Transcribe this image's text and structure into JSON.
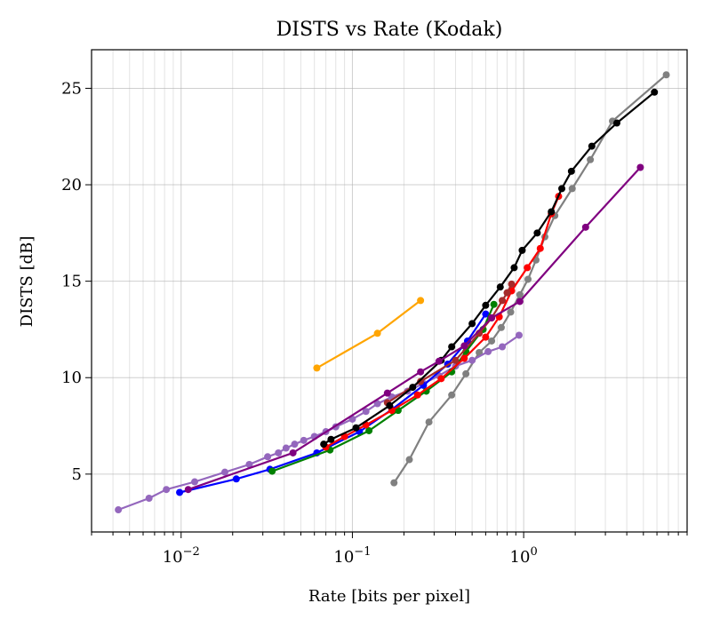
{
  "chart_data": {
    "type": "line",
    "title": "DISTS vs Rate (Kodak)",
    "xlabel": "Rate [bits per pixel]",
    "ylabel": "DISTS [dB]",
    "xscale": "log",
    "xlim": [
      0.003,
      9.0
    ],
    "ylim": [
      2.0,
      27.0
    ],
    "x_ticks": [
      {
        "value": 0.01,
        "base": "10",
        "exp": "−2"
      },
      {
        "value": 0.1,
        "base": "10",
        "exp": "−1"
      },
      {
        "value": 1.0,
        "base": "10",
        "exp": "0"
      }
    ],
    "y_ticks": [
      5,
      10,
      15,
      20,
      25
    ],
    "grid": true,
    "series": [
      {
        "color": "#ffa500",
        "x": [
          0.062,
          0.14,
          0.25
        ],
        "y": [
          10.5,
          12.3,
          14.0
        ]
      },
      {
        "color": "#808080",
        "x": [
          0.175,
          0.215,
          0.28,
          0.38,
          0.46,
          0.55,
          0.65,
          0.74,
          0.84,
          0.95,
          1.06,
          1.18,
          1.33,
          1.52,
          1.92,
          2.45,
          3.3,
          6.8
        ],
        "y": [
          4.55,
          5.75,
          7.7,
          9.1,
          10.2,
          11.3,
          11.9,
          12.6,
          13.4,
          14.3,
          15.1,
          16.1,
          17.3,
          18.4,
          19.8,
          21.3,
          23.3,
          25.7
        ]
      },
      {
        "color": "#9467bd",
        "x": [
          0.0043,
          0.0065,
          0.0082,
          0.012,
          0.018,
          0.025,
          0.032,
          0.037,
          0.041,
          0.046,
          0.052,
          0.06,
          0.07,
          0.08,
          0.1,
          0.12,
          0.14,
          0.17,
          0.21,
          0.26,
          0.32,
          0.4,
          0.5,
          0.62,
          0.75,
          0.94
        ],
        "y": [
          3.15,
          3.75,
          4.2,
          4.6,
          5.1,
          5.5,
          5.9,
          6.1,
          6.35,
          6.55,
          6.75,
          6.95,
          7.2,
          7.45,
          7.85,
          8.25,
          8.65,
          9.0,
          9.3,
          9.7,
          10.1,
          10.6,
          10.9,
          11.35,
          11.6,
          12.2
        ]
      },
      {
        "color": "#0000ff",
        "x": [
          0.0098,
          0.021,
          0.033,
          0.062,
          0.11,
          0.17,
          0.26,
          0.36,
          0.47,
          0.6
        ],
        "y": [
          4.05,
          4.75,
          5.25,
          6.1,
          7.2,
          8.35,
          9.6,
          10.7,
          11.9,
          13.3
        ]
      },
      {
        "color": "#008000",
        "x": [
          0.034,
          0.074,
          0.125,
          0.185,
          0.27,
          0.38,
          0.46,
          0.58,
          0.67
        ],
        "y": [
          5.15,
          6.25,
          7.25,
          8.3,
          9.3,
          10.3,
          11.35,
          12.5,
          13.8
        ]
      },
      {
        "color": "#ff0000",
        "x": [
          0.07,
          0.09,
          0.12,
          0.17,
          0.24,
          0.33,
          0.45,
          0.6,
          0.72,
          0.85,
          1.05,
          1.25,
          1.45,
          1.6
        ],
        "y": [
          6.4,
          6.95,
          7.55,
          8.3,
          9.1,
          9.95,
          11.0,
          12.1,
          13.15,
          14.5,
          15.7,
          16.7,
          18.5,
          19.4
        ]
      },
      {
        "color": "#a52a2a",
        "x": [
          0.16,
          0.25,
          0.4,
          0.55,
          0.65,
          0.75,
          0.8,
          0.85
        ],
        "y": [
          8.7,
          9.8,
          10.9,
          12.3,
          13.1,
          14.0,
          14.4,
          14.85
        ]
      },
      {
        "color": "#000000",
        "x": [
          0.068,
          0.075,
          0.105,
          0.165,
          0.225,
          0.33,
          0.38,
          0.5,
          0.6,
          0.73,
          0.88,
          0.98,
          1.2,
          1.45,
          1.67,
          1.9,
          2.5,
          3.5,
          5.8
        ],
        "y": [
          6.55,
          6.8,
          7.4,
          8.55,
          9.5,
          10.9,
          11.6,
          12.8,
          13.75,
          14.7,
          15.7,
          16.6,
          17.5,
          18.6,
          19.8,
          20.7,
          22.0,
          23.2,
          24.8
        ]
      },
      {
        "color": "#800080",
        "x": [
          0.011,
          0.045,
          0.16,
          0.25,
          0.32,
          0.45,
          0.65,
          0.95,
          2.3,
          4.8
        ],
        "y": [
          4.2,
          6.1,
          9.2,
          10.3,
          10.85,
          11.65,
          13.1,
          13.95,
          17.8,
          20.9
        ]
      }
    ]
  }
}
